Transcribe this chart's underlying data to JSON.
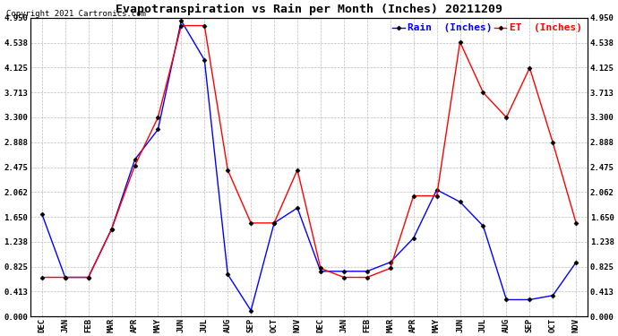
{
  "title": "Evapotranspiration vs Rain per Month (Inches) 20211209",
  "copyright": "Copyright 2021 Cartronics.com",
  "x_labels": [
    "DEC",
    "JAN",
    "FEB",
    "MAR",
    "APR",
    "MAY",
    "JUN",
    "JUL",
    "AUG",
    "SEP",
    "OCT",
    "NOV",
    "DEC",
    "JAN",
    "FEB",
    "MAR",
    "APR",
    "MAY",
    "JUN",
    "JUL",
    "AUG",
    "SEP",
    "OCT",
    "NOV"
  ],
  "rain_values": [
    1.7,
    0.65,
    0.65,
    1.45,
    2.6,
    3.1,
    4.9,
    4.25,
    0.7,
    0.1,
    1.55,
    1.8,
    0.75,
    0.75,
    0.75,
    0.9,
    1.3,
    2.1,
    1.9,
    1.5,
    0.28,
    0.28,
    0.35,
    0.9
  ],
  "et_values": [
    0.65,
    0.65,
    0.65,
    1.45,
    2.5,
    3.3,
    4.82,
    4.82,
    2.43,
    1.55,
    1.55,
    2.43,
    0.8,
    0.65,
    0.65,
    0.8,
    2.0,
    2.0,
    4.55,
    3.71,
    3.3,
    4.12,
    2.88,
    1.55
  ],
  "ylim": [
    0.0,
    4.95
  ],
  "yticks": [
    0.0,
    0.413,
    0.825,
    1.238,
    1.65,
    2.062,
    2.475,
    2.888,
    3.3,
    3.713,
    4.125,
    4.538,
    4.95
  ],
  "rain_color": "blue",
  "et_color": "red",
  "bg_color": "#ffffff",
  "grid_color": "#bbbbbb",
  "legend_rain": "Rain  (Inches)",
  "legend_et": "ET  (Inches)",
  "title_fontsize": 9.5,
  "copyright_fontsize": 6.5,
  "axis_tick_fontsize": 6.5,
  "legend_fontsize": 8,
  "figwidth": 6.9,
  "figheight": 3.75,
  "dpi": 100
}
